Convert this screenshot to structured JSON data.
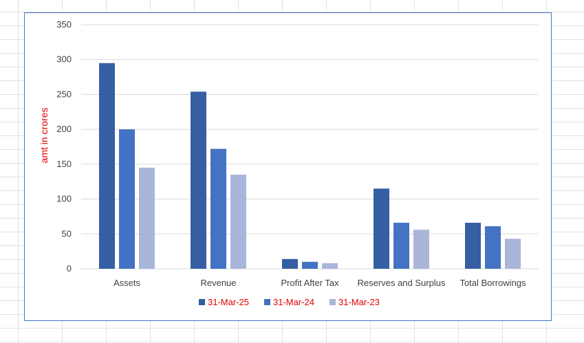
{
  "chart_data": {
    "type": "bar",
    "title": "",
    "xlabel": "",
    "ylabel": "amt in crores",
    "ylim": [
      0,
      350
    ],
    "yticks": [
      0,
      50,
      100,
      150,
      200,
      250,
      300,
      350
    ],
    "grid": true,
    "legend_position": "bottom",
    "categories": [
      "Assets",
      "Revenue",
      "Profit After Tax",
      "Reserves and Surplus",
      "Total Borrowings"
    ],
    "series": [
      {
        "name": "31-Mar-25",
        "color": "#365ea3",
        "values": [
          295,
          254,
          14,
          115,
          66
        ]
      },
      {
        "name": "31-Mar-24",
        "color": "#4472c4",
        "values": [
          200,
          172,
          10,
          66,
          61
        ]
      },
      {
        "name": "31-Mar-23",
        "color": "#a9b6da",
        "values": [
          145,
          135,
          8,
          56,
          43
        ]
      }
    ],
    "colors": {
      "ylabel": "#e00000",
      "legend_text": "#e00000",
      "axis_text": "#404040",
      "gridline": "#d9d9d9",
      "border": "#4472c4"
    }
  }
}
